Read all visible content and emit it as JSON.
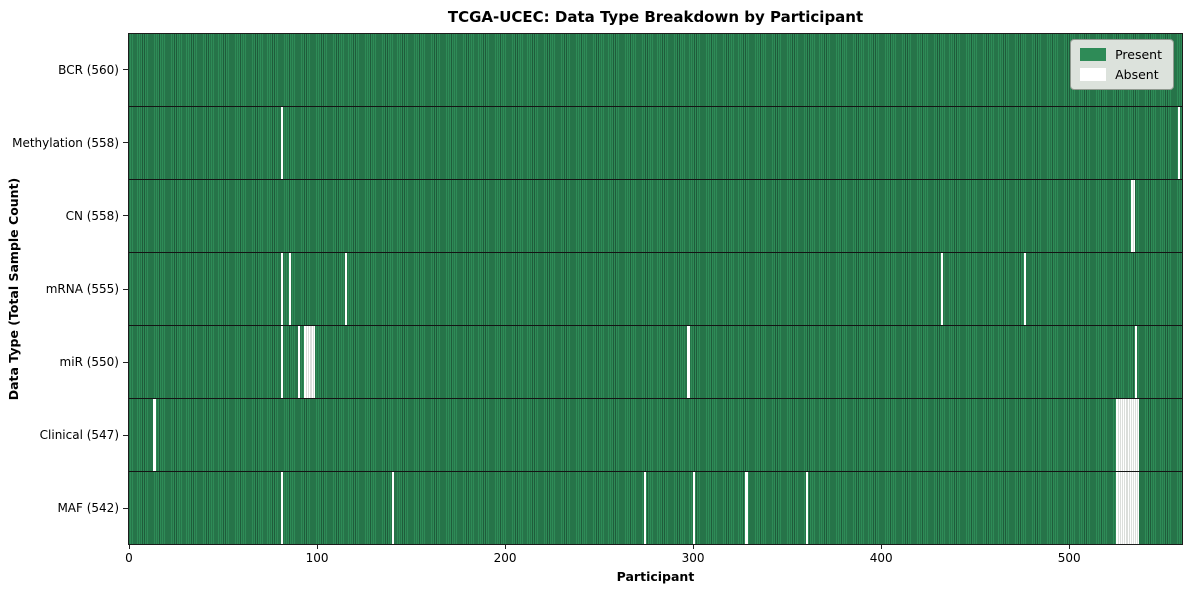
{
  "chart_data": {
    "type": "heatmap",
    "title": "TCGA-UCEC: Data Type Breakdown by Participant",
    "xlabel": "Participant",
    "ylabel": "Data Type (Total Sample Count)",
    "n_participants": 560,
    "xlim": [
      0,
      560
    ],
    "x_ticks": [
      0,
      100,
      200,
      300,
      400,
      500
    ],
    "legend_position": "upper right",
    "grid": false,
    "colors": {
      "present": "#2e8b57",
      "present_edge": "#1f5c3b",
      "absent": "#ffffff",
      "legend_bg": "#dce2dc",
      "row_divider": "#141414"
    },
    "legend": [
      {
        "label": "Present",
        "color": "#2e8b57"
      },
      {
        "label": "Absent",
        "color": "#ffffff"
      }
    ],
    "rows": [
      {
        "label": "BCR (560)",
        "present_count": 560,
        "absent_participants": []
      },
      {
        "label": "Methylation (558)",
        "present_count": 558,
        "absent_participants": [
          81,
          558
        ]
      },
      {
        "label": "CN (558)",
        "present_count": 558,
        "absent_participants": [
          533,
          534
        ]
      },
      {
        "label": "mRNA (555)",
        "present_count": 555,
        "absent_participants": [
          81,
          85,
          115,
          432,
          476
        ]
      },
      {
        "label": "miR (550)",
        "present_count": 550,
        "absent_participants": [
          81,
          90,
          93,
          94,
          95,
          96,
          97,
          98,
          297,
          535
        ]
      },
      {
        "label": "Clinical (547)",
        "present_count": 547,
        "absent_participants": [
          13,
          525,
          526,
          527,
          528,
          529,
          530,
          531,
          532,
          533,
          534,
          535,
          536
        ]
      },
      {
        "label": "MAF (542)",
        "present_count": 542,
        "absent_participants": [
          81,
          140,
          274,
          300,
          328,
          360,
          525,
          526,
          527,
          528,
          529,
          530,
          531,
          532,
          533,
          534,
          535,
          536
        ]
      }
    ]
  }
}
